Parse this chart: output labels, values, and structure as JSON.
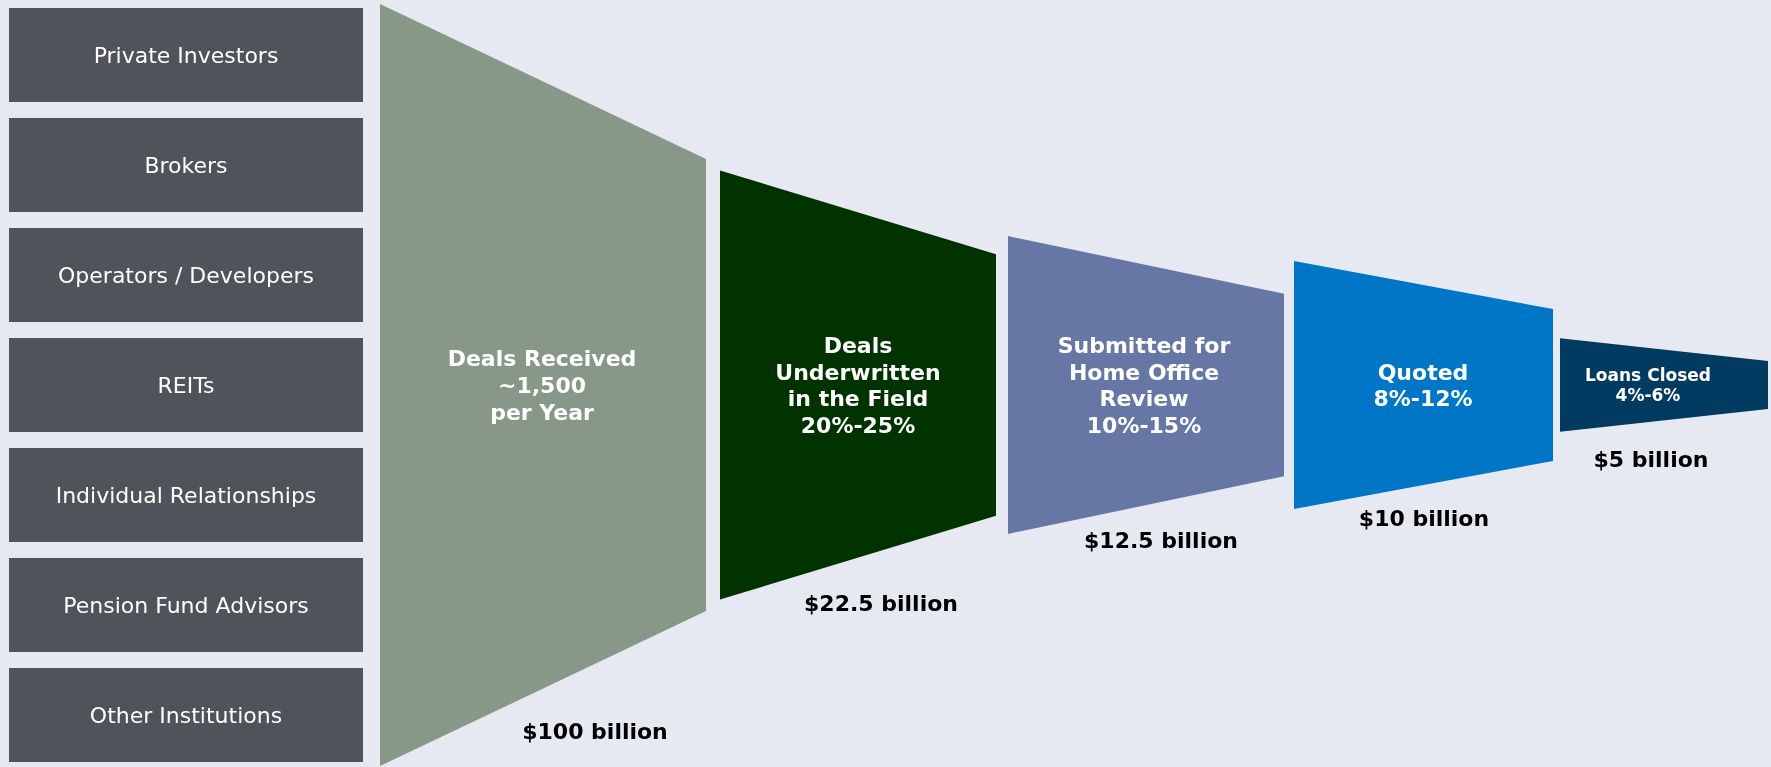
{
  "chart_data": {
    "type": "other",
    "categories": [
      "Deals Received\n~1,500\nper Year",
      "Deals\nUnderwritten\nin the Field\n20%-25%",
      "Submitted for\nHome Office\nReview\n10%-15%",
      "Quoted\n8%-12%",
      "Loans Closed\n4%-6%"
    ],
    "values": [
      100,
      22.5,
      12.5,
      10,
      5
    ],
    "value_labels": [
      "$100 billion",
      "$22.5 billion",
      "$12.5 billion",
      "$10 billion",
      "$5 billion"
    ],
    "colors": [
      "#879888",
      "#013301",
      "#6777a5",
      "#0077c6",
      "#013b62"
    ],
    "annotations": [
      "Private Investors",
      "Brokers",
      "Operators / Developers",
      "REITs",
      "Individual Relationships",
      "Pension Fund Advisors",
      "Other Institutions"
    ]
  }
}
